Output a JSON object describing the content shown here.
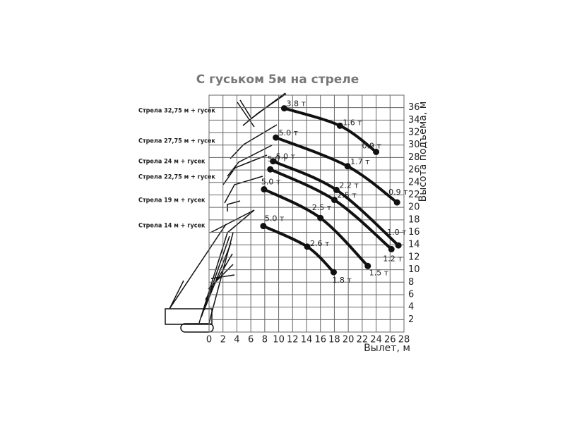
{
  "chart_data": {
    "type": "line",
    "title": "С гуськом 5м на стреле",
    "xlabel": "Вылет, м",
    "ylabel": "Высота подъема, м",
    "xlim": [
      0,
      28
    ],
    "ylim": [
      0,
      38
    ],
    "xticks": [
      0,
      2,
      4,
      6,
      8,
      10,
      12,
      14,
      16,
      18,
      20,
      22,
      24,
      26,
      28
    ],
    "yticks": [
      2,
      4,
      6,
      8,
      10,
      12,
      14,
      16,
      18,
      20,
      22,
      24,
      26,
      28,
      30,
      32,
      34,
      36
    ],
    "grid": true,
    "series": [
      {
        "name": "Стрела 32,75 м + гусек",
        "color": "#111111",
        "x": [
          10.8,
          18.8,
          24.0
        ],
        "values": [
          35.9,
          33.1,
          28.9
        ],
        "labels": [
          "3.8 т",
          "1.6 т",
          "0.9 т"
        ]
      },
      {
        "name": "Стрела 27,75 м + гусек",
        "color": "#111111",
        "x": [
          9.6,
          19.9,
          27.0
        ],
        "values": [
          31.2,
          26.6,
          20.8
        ],
        "labels": [
          "5.0 т",
          "1.7 т",
          "0.9 т"
        ]
      },
      {
        "name": "Стрела 24 м + гусек",
        "color": "#111111",
        "x": [
          9.2,
          18.3,
          27.2
        ],
        "values": [
          27.4,
          22.8,
          13.9
        ],
        "labels": [
          "5.0 т",
          "2.2 т",
          "1.0 т"
        ]
      },
      {
        "name": "Стрела 22,75 м + гусек",
        "color": "#111111",
        "x": [
          8.8,
          18.0,
          26.2
        ],
        "values": [
          26.1,
          21.2,
          13.3
        ],
        "labels": [
          "5.0 т",
          "2.5 т",
          "1.2 т"
        ]
      },
      {
        "name": "Стрела 19 м + гусек",
        "color": "#111111",
        "x": [
          7.9,
          16.0,
          22.8
        ],
        "values": [
          22.9,
          18.3,
          10.6
        ],
        "labels": [
          "5.0 т",
          "2.5 т",
          "1.5 т"
        ]
      },
      {
        "name": "Стрела 14 м + гусек",
        "color": "#111111",
        "x": [
          7.8,
          14.1,
          17.9
        ],
        "values": [
          17.0,
          13.7,
          9.6
        ],
        "labels": [
          "5.0 т",
          "2.6 т",
          "1.8 т"
        ]
      }
    ]
  }
}
